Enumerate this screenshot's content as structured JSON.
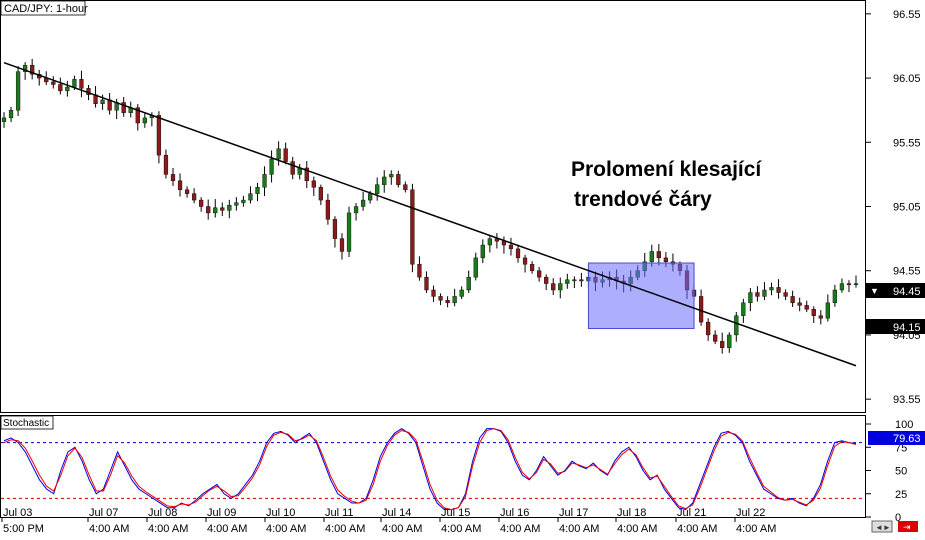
{
  "chart_data": [
    {
      "type": "candlestick",
      "title": "CAD/JPY: 1-hour",
      "annotation": [
        "Prolomení klesající",
        "trendové čáry"
      ],
      "ylim": [
        93.45,
        96.65
      ],
      "y_ticks": [
        "96.55",
        "96.05",
        "95.55",
        "95.05",
        "94.55",
        "94.05",
        "93.55"
      ],
      "current_price": "94.45",
      "price_marker": "94.15",
      "x_labels": [
        {
          "top": "Jul 03",
          "bottom": "5:00 PM"
        },
        {
          "top": "Jul 07",
          "bottom": "4:00 AM"
        },
        {
          "top": "Jul 08",
          "bottom": "4:00 AM"
        },
        {
          "top": "Jul 09",
          "bottom": "4:00 AM"
        },
        {
          "top": "Jul 10",
          "bottom": "4:00 AM"
        },
        {
          "top": "Jul 11",
          "bottom": "4:00 AM"
        },
        {
          "top": "Jul 14",
          "bottom": "4:00 AM"
        },
        {
          "top": "Jul 15",
          "bottom": "4:00 AM"
        },
        {
          "top": "Jul 16",
          "bottom": "4:00 AM"
        },
        {
          "top": "Jul 17",
          "bottom": "4:00 AM"
        },
        {
          "top": "Jul 18",
          "bottom": "4:00 AM"
        },
        {
          "top": "Jul 21",
          "bottom": "4:00 AM"
        },
        {
          "top": "Jul 22",
          "bottom": "4:00 AM"
        }
      ],
      "close_path": [
        95.74,
        95.8,
        96.1,
        96.15,
        96.08,
        96.05,
        96.02,
        96.0,
        95.95,
        95.98,
        96.04,
        95.97,
        95.92,
        95.85,
        95.88,
        95.8,
        95.86,
        95.78,
        95.82,
        95.7,
        95.74,
        95.76,
        95.45,
        95.3,
        95.25,
        95.18,
        95.15,
        95.1,
        95.05,
        95.0,
        95.04,
        95.02,
        95.06,
        95.08,
        95.1,
        95.15,
        95.2,
        95.3,
        95.42,
        95.5,
        95.4,
        95.3,
        95.35,
        95.25,
        95.2,
        95.1,
        94.95,
        94.8,
        94.7,
        95.0,
        95.05,
        95.1,
        95.15,
        95.22,
        95.28,
        95.3,
        95.22,
        95.18,
        94.6,
        94.5,
        94.4,
        94.35,
        94.32,
        94.3,
        94.35,
        94.4,
        94.5,
        94.65,
        94.75,
        94.8,
        94.78,
        94.75,
        94.72,
        94.65,
        94.6,
        94.55,
        94.5,
        94.45,
        94.4,
        94.45,
        94.48,
        94.48,
        94.47,
        94.5,
        94.46,
        94.48,
        94.5,
        94.47,
        94.45,
        94.5,
        94.55,
        94.62,
        94.7,
        94.65,
        94.62,
        94.6,
        94.55,
        94.4,
        94.35,
        94.15,
        94.05,
        94.0,
        93.95,
        94.05,
        94.2,
        94.3,
        94.38,
        94.35,
        94.4,
        94.42,
        94.38,
        94.35,
        94.3,
        94.28,
        94.25,
        94.2,
        94.18,
        94.3,
        94.4,
        94.45,
        94.44,
        94.45
      ],
      "trendline": {
        "start": [
          0,
          96.17
        ],
        "end": [
          121,
          93.81
        ]
      },
      "highlight_box": {
        "x_range": [
          83,
          98
        ],
        "y_range": [
          94.1,
          94.61
        ],
        "color": "#6b6bff"
      },
      "stochastic": {
        "label": "Stochastic",
        "ylim": [
          0,
          100
        ],
        "y_ticks": [
          "100",
          "75",
          "50",
          "25",
          "0"
        ],
        "levels": [
          80,
          20
        ],
        "current_value": "79.63",
        "series": [
          {
            "color": "#0000ee",
            "values": [
              82,
              85,
              80,
              70,
              55,
              40,
              30,
              25,
              50,
              70,
              75,
              60,
              40,
              25,
              30,
              50,
              70,
              55,
              40,
              30,
              25,
              20,
              15,
              10,
              10,
              15,
              12,
              18,
              25,
              30,
              35,
              25,
              20,
              25,
              35,
              45,
              60,
              80,
              90,
              92,
              88,
              80,
              85,
              90,
              80,
              60,
              40,
              25,
              20,
              15,
              15,
              20,
              40,
              65,
              80,
              90,
              95,
              90,
              80,
              55,
              30,
              15,
              8,
              8,
              10,
              25,
              60,
              85,
              95,
              95,
              92,
              80,
              60,
              45,
              40,
              50,
              65,
              55,
              45,
              50,
              60,
              55,
              52,
              58,
              50,
              45,
              60,
              70,
              75,
              65,
              50,
              40,
              45,
              30,
              20,
              10,
              8,
              15,
              35,
              55,
              75,
              90,
              92,
              88,
              80,
              60,
              45,
              30,
              25,
              20,
              18,
              20,
              15,
              12,
              20,
              35,
              60,
              80,
              82,
              80,
              79
            ]
          },
          {
            "color": "#ee0000",
            "values": [
              80,
              83,
              82,
              74,
              60,
              45,
              33,
              28,
              45,
              66,
              74,
              64,
              45,
              28,
              28,
              45,
              66,
              58,
              44,
              33,
              27,
              22,
              17,
              12,
              11,
              14,
              13,
              16,
              23,
              29,
              33,
              28,
              22,
              23,
              32,
              42,
              56,
              76,
              88,
              91,
              89,
              82,
              84,
              88,
              82,
              64,
              44,
              29,
              22,
              17,
              15,
              18,
              35,
              60,
              77,
              88,
              93,
              91,
              83,
              60,
              35,
              18,
              10,
              8,
              10,
              22,
              55,
              80,
              93,
              95,
              93,
              83,
              64,
              48,
              41,
              48,
              62,
              57,
              47,
              49,
              58,
              56,
              53,
              56,
              51,
              46,
              57,
              67,
              73,
              67,
              53,
              42,
              44,
              33,
              22,
              12,
              9,
              13,
              31,
              51,
              71,
              87,
              91,
              89,
              82,
              64,
              48,
              33,
              27,
              21,
              18,
              19,
              16,
              13,
              18,
              31,
              55,
              76,
              81,
              80,
              78
            ]
          }
        ]
      }
    }
  ]
}
